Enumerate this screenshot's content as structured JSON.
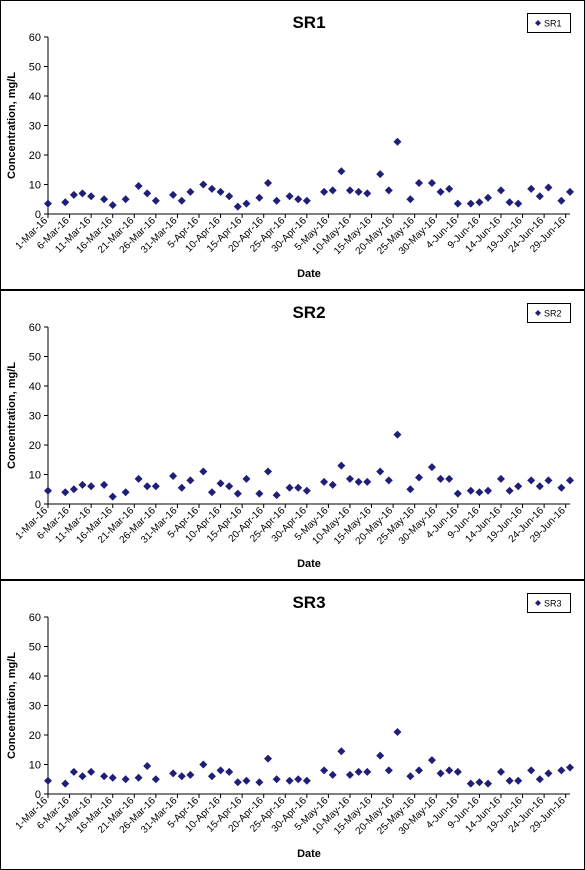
{
  "chart_data": [
    {
      "type": "scatter",
      "title": "SR1",
      "xlabel": "Date",
      "ylabel": "Concentration, mg/L",
      "ylim": [
        0,
        60
      ],
      "yticks": [
        0,
        10,
        20,
        30,
        40,
        50,
        60
      ],
      "xlim": [
        "2016-03-01",
        "2016-06-30"
      ],
      "xtick_labels": [
        "1-Mar-16",
        "6-Mar-16",
        "11-Mar-16",
        "16-Mar-16",
        "21-Mar-16",
        "26-Mar-16",
        "31-Mar-16",
        "5-Apr-16",
        "10-Apr-16",
        "15-Apr-16",
        "20-Apr-16",
        "25-Apr-16",
        "30-Apr-16",
        "5-May-16",
        "10-May-16",
        "15-May-16",
        "20-May-16",
        "25-May-16",
        "30-May-16",
        "4-Jun-16",
        "9-Jun-16",
        "14-Jun-16",
        "19-Jun-16",
        "24-Jun-16",
        "29-Jun-16"
      ],
      "legend_position": "top-right",
      "grid": false,
      "marker": "diamond",
      "color": "#1f1f7a",
      "series": [
        {
          "name": "SR1",
          "x": [
            "2016-03-01",
            "2016-03-05",
            "2016-03-07",
            "2016-03-09",
            "2016-03-11",
            "2016-03-14",
            "2016-03-16",
            "2016-03-19",
            "2016-03-22",
            "2016-03-24",
            "2016-03-26",
            "2016-03-30",
            "2016-04-01",
            "2016-04-03",
            "2016-04-06",
            "2016-04-08",
            "2016-04-10",
            "2016-04-12",
            "2016-04-14",
            "2016-04-16",
            "2016-04-19",
            "2016-04-21",
            "2016-04-23",
            "2016-04-26",
            "2016-04-28",
            "2016-04-30",
            "2016-05-04",
            "2016-05-06",
            "2016-05-08",
            "2016-05-10",
            "2016-05-12",
            "2016-05-14",
            "2016-05-17",
            "2016-05-19",
            "2016-05-21",
            "2016-05-24",
            "2016-05-26",
            "2016-05-29",
            "2016-05-31",
            "2016-06-02",
            "2016-06-04",
            "2016-06-07",
            "2016-06-09",
            "2016-06-11",
            "2016-06-14",
            "2016-06-16",
            "2016-06-18",
            "2016-06-21",
            "2016-06-23",
            "2016-06-25",
            "2016-06-28",
            "2016-06-30"
          ],
          "y": [
            3.5,
            4,
            6.5,
            7,
            6,
            5,
            3,
            5,
            9.5,
            7,
            4.5,
            6.5,
            4.5,
            7.5,
            10,
            8.5,
            7.5,
            6,
            2.5,
            3.5,
            5.5,
            10.5,
            4.5,
            6,
            5,
            4.5,
            7.5,
            8,
            14.5,
            8,
            7.5,
            7,
            13.5,
            8,
            24.5,
            5,
            10.5,
            10.5,
            7.5,
            8.5,
            3.5,
            3.5,
            4,
            5.5,
            8,
            4,
            3.5,
            8.5,
            6,
            9,
            4.5,
            7.5
          ]
        }
      ]
    },
    {
      "type": "scatter",
      "title": "SR2",
      "xlabel": "Date",
      "ylabel": "Concentration, mg/L",
      "ylim": [
        0,
        60
      ],
      "yticks": [
        0,
        10,
        20,
        30,
        40,
        50,
        60
      ],
      "xlim": [
        "2016-03-01",
        "2016-06-30"
      ],
      "xtick_labels": [
        "1-Mar-16",
        "6-Mar-16",
        "11-Mar-16",
        "16-Mar-16",
        "21-Mar-16",
        "26-Mar-16",
        "31-Mar-16",
        "5-Apr-16",
        "10-Apr-16",
        "15-Apr-16",
        "20-Apr-16",
        "25-Apr-16",
        "30-Apr-16",
        "5-May-16",
        "10-May-16",
        "15-May-16",
        "20-May-16",
        "25-May-16",
        "30-May-16",
        "4-Jun-16",
        "9-Jun-16",
        "14-Jun-16",
        "19-Jun-16",
        "24-Jun-16",
        "29-Jun-16"
      ],
      "legend_position": "top-right",
      "grid": false,
      "marker": "diamond",
      "color": "#1f1f7a",
      "series": [
        {
          "name": "SR2",
          "x": [
            "2016-03-01",
            "2016-03-05",
            "2016-03-07",
            "2016-03-09",
            "2016-03-11",
            "2016-03-14",
            "2016-03-16",
            "2016-03-19",
            "2016-03-22",
            "2016-03-24",
            "2016-03-26",
            "2016-03-30",
            "2016-04-01",
            "2016-04-03",
            "2016-04-06",
            "2016-04-08",
            "2016-04-10",
            "2016-04-12",
            "2016-04-14",
            "2016-04-16",
            "2016-04-19",
            "2016-04-21",
            "2016-04-23",
            "2016-04-26",
            "2016-04-28",
            "2016-04-30",
            "2016-05-04",
            "2016-05-06",
            "2016-05-08",
            "2016-05-10",
            "2016-05-12",
            "2016-05-14",
            "2016-05-17",
            "2016-05-19",
            "2016-05-21",
            "2016-05-24",
            "2016-05-26",
            "2016-05-29",
            "2016-05-31",
            "2016-06-02",
            "2016-06-04",
            "2016-06-07",
            "2016-06-09",
            "2016-06-11",
            "2016-06-14",
            "2016-06-16",
            "2016-06-18",
            "2016-06-21",
            "2016-06-23",
            "2016-06-25",
            "2016-06-28",
            "2016-06-30"
          ],
          "y": [
            4.5,
            4,
            5,
            6.5,
            6,
            6.5,
            2.5,
            4,
            8.5,
            6,
            6,
            9.5,
            5.5,
            8,
            11,
            4,
            7,
            6,
            3.5,
            8.5,
            3.5,
            11,
            3,
            5.5,
            5.5,
            4.5,
            7.5,
            6.5,
            13,
            8.5,
            7.5,
            7.5,
            11,
            8,
            23.5,
            5,
            9,
            12.5,
            8.5,
            8.5,
            3.5,
            4.5,
            4,
            4.5,
            8.5,
            4.5,
            6,
            8,
            6,
            8,
            5.5,
            8
          ]
        }
      ]
    },
    {
      "type": "scatter",
      "title": "SR3",
      "xlabel": "Date",
      "ylabel": "Concentration, mg/L",
      "ylim": [
        0,
        60
      ],
      "yticks": [
        0,
        10,
        20,
        30,
        40,
        50,
        60
      ],
      "xlim": [
        "2016-03-01",
        "2016-06-30"
      ],
      "xtick_labels": [
        "1-Mar-16",
        "6-Mar-16",
        "11-Mar-16",
        "16-Mar-16",
        "21-Mar-16",
        "26-Mar-16",
        "31-Mar-16",
        "5-Apr-16",
        "10-Apr-16",
        "15-Apr-16",
        "20-Apr-16",
        "25-Apr-16",
        "30-Apr-16",
        "5-May-16",
        "10-May-16",
        "15-May-16",
        "20-May-16",
        "25-May-16",
        "30-May-16",
        "4-Jun-16",
        "9-Jun-16",
        "14-Jun-16",
        "19-Jun-16",
        "24-Jun-16",
        "29-Jun-16"
      ],
      "legend_position": "top-right",
      "grid": false,
      "marker": "diamond",
      "color": "#1f1f7a",
      "series": [
        {
          "name": "SR3",
          "x": [
            "2016-03-01",
            "2016-03-05",
            "2016-03-07",
            "2016-03-09",
            "2016-03-11",
            "2016-03-14",
            "2016-03-16",
            "2016-03-19",
            "2016-03-22",
            "2016-03-24",
            "2016-03-26",
            "2016-03-30",
            "2016-04-01",
            "2016-04-03",
            "2016-04-06",
            "2016-04-08",
            "2016-04-10",
            "2016-04-12",
            "2016-04-14",
            "2016-04-16",
            "2016-04-19",
            "2016-04-21",
            "2016-04-23",
            "2016-04-26",
            "2016-04-28",
            "2016-04-30",
            "2016-05-04",
            "2016-05-06",
            "2016-05-08",
            "2016-05-10",
            "2016-05-12",
            "2016-05-14",
            "2016-05-17",
            "2016-05-19",
            "2016-05-21",
            "2016-05-24",
            "2016-05-26",
            "2016-05-29",
            "2016-05-31",
            "2016-06-02",
            "2016-06-04",
            "2016-06-07",
            "2016-06-09",
            "2016-06-11",
            "2016-06-14",
            "2016-06-16",
            "2016-06-18",
            "2016-06-21",
            "2016-06-23",
            "2016-06-25",
            "2016-06-28",
            "2016-06-30"
          ],
          "y": [
            4.5,
            3.5,
            7.5,
            6,
            7.5,
            6,
            5.5,
            5,
            5.5,
            9.5,
            5,
            7,
            6,
            6.5,
            10,
            6,
            8,
            7.5,
            4,
            4.5,
            4,
            12,
            5,
            4.5,
            5,
            4.5,
            8,
            6.5,
            14.5,
            6.5,
            7.5,
            7.5,
            13,
            8,
            21,
            6,
            8,
            11.5,
            7,
            8,
            7.5,
            3.5,
            4,
            3.5,
            7.5,
            4.5,
            4.5,
            8,
            5,
            7,
            8,
            9
          ]
        }
      ]
    }
  ]
}
